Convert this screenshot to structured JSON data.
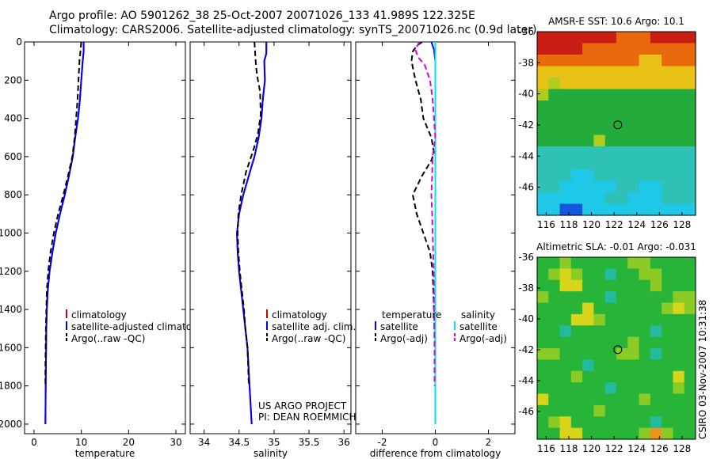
{
  "header": {
    "line1": "Argo profile: AO 5901262_38 25-Oct-2007 20071026_133 41.989S 122.325E",
    "line2": "Climatology: CARS2006. Satellite-adjusted climatology: synTS_20071026.nc (0.9d later)"
  },
  "stamp": "CSIRO 03-Nov-2007 10:31:38",
  "credit": {
    "line1": "US ARGO PROJECT",
    "line2": "PI: DEAN ROEMMICH"
  },
  "colors": {
    "climatology": "#cc0000",
    "satellite": "#0000ff",
    "argo": "#000000",
    "sal_satellite": "#00e5ee",
    "sal_argo": "#dd00dd"
  },
  "chart_data": [
    {
      "type": "line",
      "xlabel": "temperature",
      "ylabel": "",
      "xlim": [
        -2,
        32
      ],
      "ylim": [
        2050,
        0
      ],
      "y_reversed": true,
      "xticks": [
        0,
        10,
        20,
        30
      ],
      "yticks": [
        0,
        200,
        400,
        600,
        800,
        1000,
        1200,
        1400,
        1600,
        1800,
        2000
      ],
      "legend": [
        "climatology",
        "satellite-adjusted climatology",
        "Argo(..raw -QC)"
      ],
      "legend_position": "lower-right",
      "series": [
        {
          "name": "climatology",
          "style": "solid",
          "color": "#cc0000",
          "x": [
            10.5,
            10.5,
            10.3,
            10.0,
            9.7,
            9.3,
            8.7,
            8.2,
            7.4,
            6.5,
            5.5,
            4.6,
            3.9,
            3.3,
            2.9,
            2.7,
            2.6,
            2.5,
            2.4
          ],
          "y": [
            0,
            50,
            100,
            200,
            300,
            400,
            500,
            600,
            700,
            800,
            900,
            1000,
            1100,
            1200,
            1300,
            1400,
            1500,
            1700,
            2000
          ]
        },
        {
          "name": "satellite-adjusted climatology",
          "style": "solid",
          "color": "#0000ff",
          "x": [
            10.5,
            10.5,
            10.3,
            10.0,
            9.7,
            9.3,
            8.7,
            8.2,
            7.4,
            6.5,
            5.5,
            4.6,
            3.9,
            3.3,
            2.9,
            2.7,
            2.6,
            2.5,
            2.4
          ],
          "y": [
            0,
            50,
            100,
            200,
            300,
            400,
            500,
            600,
            700,
            800,
            900,
            1000,
            1100,
            1200,
            1300,
            1400,
            1500,
            1700,
            2000
          ]
        },
        {
          "name": "Argo(..raw -QC)",
          "style": "dashed",
          "color": "#000000",
          "x": [
            10.0,
            9.8,
            9.6,
            9.4,
            9.2,
            8.9,
            8.6,
            8.1,
            7.2,
            6.2,
            5.1,
            4.2,
            3.5,
            3.0,
            2.7,
            2.6,
            2.5,
            2.4,
            2.4
          ],
          "y": [
            0,
            50,
            100,
            200,
            300,
            400,
            500,
            600,
            700,
            800,
            900,
            1000,
            1100,
            1200,
            1300,
            1400,
            1500,
            1700,
            1800
          ]
        }
      ]
    },
    {
      "type": "line",
      "xlabel": "salinity",
      "ylabel": "",
      "xlim": [
        33.8,
        36.1
      ],
      "ylim": [
        2050,
        0
      ],
      "y_reversed": true,
      "xticks": [
        34,
        34.5,
        35,
        35.5,
        36
      ],
      "legend": [
        "climatology",
        "satellite adj. clim.",
        "Argo(..raw -QC)"
      ],
      "legend_position": "lower-right",
      "series": [
        {
          "name": "climatology",
          "style": "solid",
          "color": "#cc0000",
          "x": [
            34.89,
            34.89,
            34.86,
            34.87,
            34.84,
            34.82,
            34.78,
            34.72,
            34.64,
            34.56,
            34.5,
            34.47,
            34.48,
            34.5,
            34.53,
            34.56,
            34.59,
            34.62,
            34.65,
            34.68
          ],
          "y": [
            0,
            60,
            100,
            200,
            300,
            400,
            500,
            600,
            700,
            800,
            900,
            1000,
            1100,
            1200,
            1300,
            1400,
            1500,
            1600,
            1800,
            2000
          ]
        },
        {
          "name": "satellite adj. clim.",
          "style": "solid",
          "color": "#0000ff",
          "x": [
            34.89,
            34.89,
            34.86,
            34.87,
            34.84,
            34.82,
            34.78,
            34.72,
            34.64,
            34.56,
            34.5,
            34.47,
            34.48,
            34.5,
            34.53,
            34.56,
            34.59,
            34.62,
            34.65,
            34.68
          ],
          "y": [
            0,
            60,
            100,
            200,
            300,
            400,
            500,
            600,
            700,
            800,
            900,
            1000,
            1100,
            1200,
            1300,
            1400,
            1500,
            1600,
            1800,
            2000
          ]
        },
        {
          "name": "Argo(..raw -QC)",
          "style": "dashed",
          "color": "#000000",
          "x": [
            34.72,
            34.73,
            34.74,
            34.76,
            34.8,
            34.81,
            34.77,
            34.71,
            34.6,
            34.53,
            34.49,
            34.48,
            34.49,
            34.51,
            34.54,
            34.57,
            34.59,
            34.62,
            34.64
          ],
          "y": [
            0,
            60,
            120,
            180,
            260,
            380,
            480,
            560,
            680,
            800,
            900,
            1000,
            1100,
            1200,
            1300,
            1400,
            1500,
            1600,
            1800
          ]
        }
      ]
    },
    {
      "type": "line",
      "xlabel": "difference from climatology",
      "ylabel": "",
      "xlim": [
        -3,
        3
      ],
      "ylim": [
        2050,
        0
      ],
      "y_reversed": true,
      "xticks": [
        -2,
        0,
        2
      ],
      "legend": [
        "temperature",
        "satellite",
        "Argo(-adj)",
        "salinity",
        "satellite",
        "Argo(-adj)"
      ],
      "legend_position": "lower",
      "series": [
        {
          "name": "temperature satellite",
          "style": "solid",
          "color": "#0000ff",
          "x": [
            -0.15,
            -0.05,
            0,
            0,
            0,
            0
          ],
          "y": [
            0,
            40,
            100,
            300,
            1000,
            2000
          ]
        },
        {
          "name": "temperature Argo(-adj)",
          "style": "dashed",
          "color": "#000000",
          "x": [
            -0.5,
            -0.7,
            -0.85,
            -0.9,
            -0.75,
            -0.55,
            -0.45,
            -0.15,
            -0.05,
            -0.15,
            -0.5,
            -0.85,
            -0.7,
            -0.45,
            -0.2,
            -0.1,
            -0.05,
            0,
            0
          ],
          "y": [
            0,
            20,
            50,
            100,
            200,
            300,
            400,
            500,
            580,
            620,
            700,
            800,
            900,
            1000,
            1100,
            1200,
            1400,
            1600,
            1800
          ]
        },
        {
          "name": "salinity satellite",
          "style": "solid",
          "color": "#00e5ee",
          "x": [
            0,
            0,
            0
          ],
          "y": [
            0,
            1000,
            2000
          ]
        },
        {
          "name": "salinity Argo(-adj)",
          "style": "dashed",
          "color": "#dd00dd",
          "x": [
            -0.6,
            -0.75,
            -0.65,
            -0.4,
            -0.2,
            -0.1,
            -0.05,
            0.0,
            -0.1,
            -0.12,
            -0.15,
            -0.12,
            -0.1,
            -0.08,
            -0.06,
            -0.05,
            -0.03,
            -0.03
          ],
          "y": [
            0,
            40,
            80,
            120,
            200,
            300,
            400,
            500,
            600,
            700,
            800,
            900,
            1000,
            1100,
            1200,
            1400,
            1600,
            1800
          ]
        }
      ]
    },
    {
      "type": "heatmap",
      "title": "AMSR-E SST: 10.6  Argo: 10.1",
      "xlim": [
        115.2,
        129.2
      ],
      "ylim": [
        -47.8,
        -36
      ],
      "xticks": [
        116,
        118,
        120,
        122,
        124,
        126,
        128
      ],
      "yticks": [
        -36,
        -38,
        -40,
        -42,
        -44,
        -46
      ],
      "marker": {
        "lon": 122.325,
        "lat": -41.989
      },
      "rows": [
        "RRRRRRROOORRRR",
        "RRRROOOOOOOOOO",
        "OOOOOOOOOYYOOO",
        "YYYYYYYYYYYYYY",
        "YgYYYYYYYYYYYY",
        "gGGGGGGGGGGGGG",
        "GGGGGGGGGGGGGG",
        "GGGGGGGGGGGGGG",
        "GGGGGGGGGGGGGG",
        "GGGGGgGGGGGGGG",
        "TTTTTTTTTTTTTT",
        "TTTTTTTTTTTTTT",
        "TTTCCTTTTTTTTT",
        "TTCCCCCTTCCTTT",
        "CCCCCCTTCCCTTT",
        "CCBBCCCCCCCCCC"
      ],
      "palette": {
        "R": "#c81e14",
        "O": "#e86a0c",
        "Y": "#e8c214",
        "g": "#aecd1e",
        "G": "#23ac3c",
        "T": "#2ec2b6",
        "C": "#1ec8e6",
        "B": "#1456dc"
      }
    },
    {
      "type": "heatmap",
      "title": "Altimetric SLA: -0.01  Argo: -0.031",
      "xlim": [
        115.2,
        129.2
      ],
      "ylim": [
        -47.8,
        -36
      ],
      "xticks": [
        116,
        118,
        120,
        122,
        124,
        126,
        128
      ],
      "yticks": [
        -36,
        -38,
        -40,
        -42,
        -44,
        -46
      ],
      "marker": {
        "lon": 122.325,
        "lat": -41.989
      },
      "rows": [
        "GGLGGGGGLLGGGG",
        "GLYLGGTGGLLGGG",
        "GGYYGGGGGGLGGG",
        "LGGGGGTGGGGGLL",
        "GGGGYGGGGGGLYL",
        "GGGYYLGGGGGGGG",
        "GGTGGGGGGGTGGG",
        "GGGGGGGGLGGGGG",
        "LLGGGGGLLGTGGG",
        "GGGGTGGGGGGGGG",
        "GGGLGGGGGGGGYG",
        "GGGGGGTGGGGGLG",
        "YGGGGGGGGLGGGG",
        "GGGGGLGGGGGGGG",
        "GLYGGGGGGGTGGG",
        "GGYYGGGGGLOLGG"
      ],
      "palette": {
        "G": "#28b438",
        "L": "#8acb26",
        "Y": "#d8d41a",
        "T": "#22bba0",
        "O": "#e8961a"
      }
    }
  ]
}
